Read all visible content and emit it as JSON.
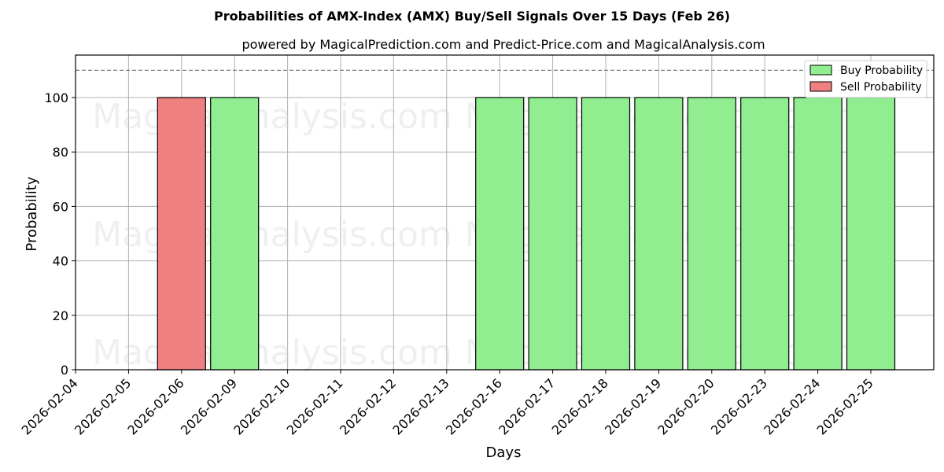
{
  "chart_data": {
    "type": "bar",
    "title": "Probabilities of AMX-Index (AMX) Buy/Sell Signals Over 15 Days (Feb 26)",
    "subtitle": "powered by MagicalPrediction.com and Predict-Price.com and MagicalAnalysis.com",
    "xlabel": "Days",
    "ylabel": "Probability",
    "ylim": [
      0,
      115
    ],
    "yticks": [
      0,
      20,
      40,
      60,
      80,
      100
    ],
    "grid": true,
    "legend_position": "upper right",
    "reference_line": {
      "y": 110,
      "style": "dashed",
      "color": "#808080"
    },
    "categories": [
      "2026-02-04",
      "2026-02-05",
      "2026-02-06",
      "2026-02-09",
      "2026-02-10",
      "2026-02-11",
      "2026-02-12",
      "2026-02-13",
      "2026-02-16",
      "2026-02-17",
      "2026-02-18",
      "2026-02-19",
      "2026-02-20",
      "2026-02-23",
      "2026-02-24",
      "2026-02-25"
    ],
    "series": [
      {
        "name": "Buy Probability",
        "color": "#90ee90",
        "values": [
          0,
          0,
          0,
          100,
          0,
          0,
          0,
          0,
          100,
          100,
          100,
          100,
          100,
          100,
          100,
          100
        ]
      },
      {
        "name": "Sell Probability",
        "color": "#f08080",
        "values": [
          0,
          0,
          100,
          0,
          0,
          0,
          0,
          0,
          0,
          0,
          0,
          0,
          0,
          0,
          0,
          0
        ]
      }
    ],
    "bars": [
      {
        "date": "2026-02-06",
        "series": "Sell Probability",
        "value": 100
      },
      {
        "date": "2026-02-09",
        "series": "Buy Probability",
        "value": 100
      },
      {
        "date": "2026-02-16",
        "series": "Buy Probability",
        "value": 100
      },
      {
        "date": "2026-02-17",
        "series": "Buy Probability",
        "value": 100
      },
      {
        "date": "2026-02-18",
        "series": "Buy Probability",
        "value": 100
      },
      {
        "date": "2026-02-19",
        "series": "Buy Probability",
        "value": 100
      },
      {
        "date": "2026-02-20",
        "series": "Buy Probability",
        "value": 100
      },
      {
        "date": "2026-02-23",
        "series": "Buy Probability",
        "value": 100
      },
      {
        "date": "2026-02-24",
        "series": "Buy Probability",
        "value": 100
      },
      {
        "date": "2026-02-25",
        "series": "Buy Probability",
        "value": 100
      }
    ]
  },
  "legend": {
    "buy_label": "Buy Probability",
    "sell_label": "Sell Probability"
  },
  "watermarks": [
    "MagicalAnalysis.com",
    "MagicalPrediction.com"
  ]
}
